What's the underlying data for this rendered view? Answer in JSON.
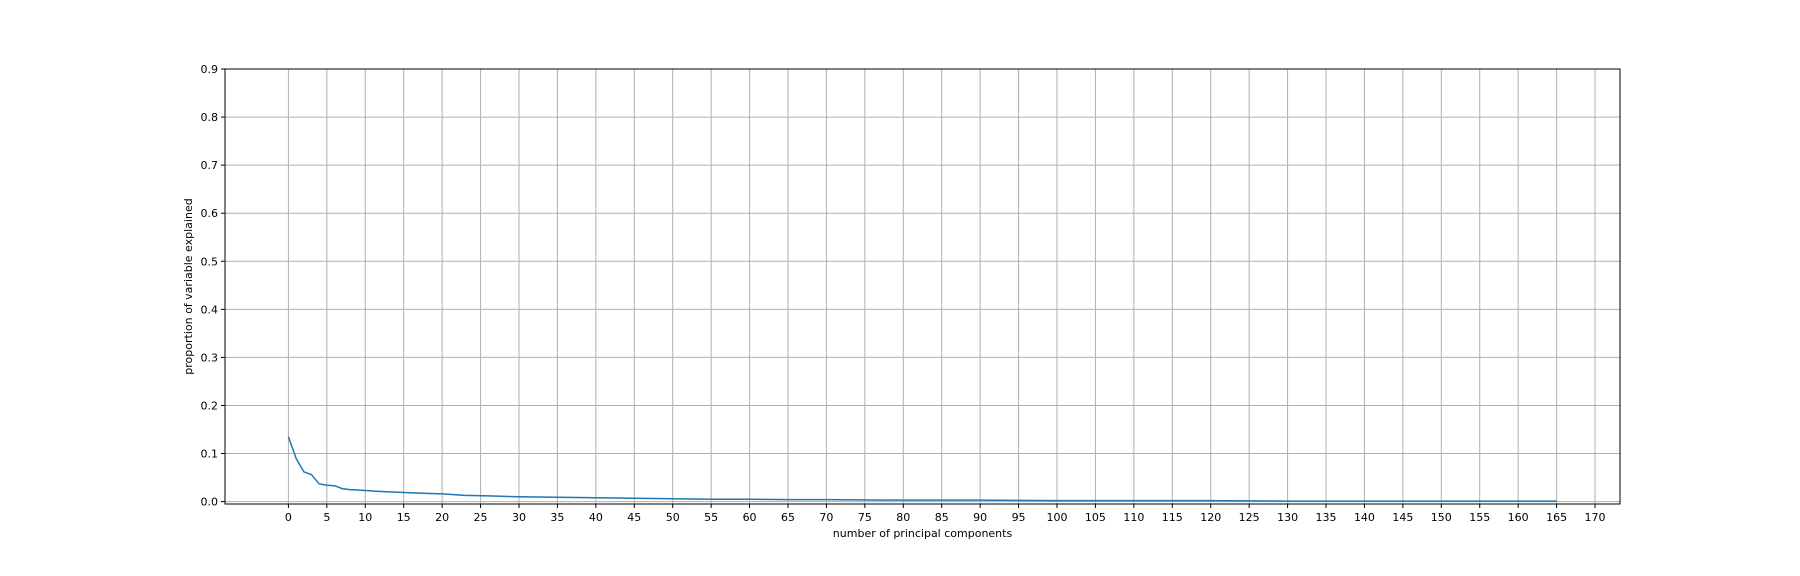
{
  "chart_data": {
    "type": "line",
    "title": "",
    "xlabel": "number of principal components",
    "ylabel": "proportion of variable explained",
    "xlim": [
      -8.25,
      173.25
    ],
    "ylim": [
      -0.005,
      0.9
    ],
    "grid": true,
    "legend": "none",
    "x_ticks": [
      "0",
      "5",
      "10",
      "15",
      "20",
      "25",
      "30",
      "35",
      "40",
      "45",
      "50",
      "55",
      "60",
      "65",
      "70",
      "75",
      "80",
      "85",
      "90",
      "95",
      "100",
      "105",
      "110",
      "115",
      "120",
      "125",
      "130",
      "135",
      "140",
      "145",
      "150",
      "155",
      "160",
      "165",
      "170"
    ],
    "y_ticks": [
      "0.0",
      "0.1",
      "0.2",
      "0.3",
      "0.4",
      "0.5",
      "0.6",
      "0.7",
      "0.8",
      "0.9"
    ],
    "series": [
      {
        "color": "#1f77b4",
        "points": [
          [
            0,
            0.135
          ],
          [
            1,
            0.09
          ],
          [
            2,
            0.062
          ],
          [
            3,
            0.056
          ],
          [
            4,
            0.037
          ],
          [
            5,
            0.034
          ],
          [
            6,
            0.033
          ],
          [
            7,
            0.027
          ],
          [
            8,
            0.025
          ],
          [
            9,
            0.024
          ],
          [
            10,
            0.023
          ],
          [
            12,
            0.021
          ],
          [
            15,
            0.019
          ],
          [
            18,
            0.017
          ],
          [
            20,
            0.016
          ],
          [
            23,
            0.013
          ],
          [
            26,
            0.012
          ],
          [
            30,
            0.01
          ],
          [
            35,
            0.009
          ],
          [
            40,
            0.008
          ],
          [
            45,
            0.007
          ],
          [
            50,
            0.006
          ],
          [
            55,
            0.005
          ],
          [
            60,
            0.005
          ],
          [
            65,
            0.004
          ],
          [
            70,
            0.004
          ],
          [
            80,
            0.003
          ],
          [
            90,
            0.003
          ],
          [
            100,
            0.002
          ],
          [
            110,
            0.002
          ],
          [
            120,
            0.002
          ],
          [
            130,
            0.001
          ],
          [
            140,
            0.001
          ],
          [
            150,
            0.001
          ],
          [
            160,
            0.001
          ],
          [
            165,
            0.001
          ]
        ]
      }
    ]
  }
}
